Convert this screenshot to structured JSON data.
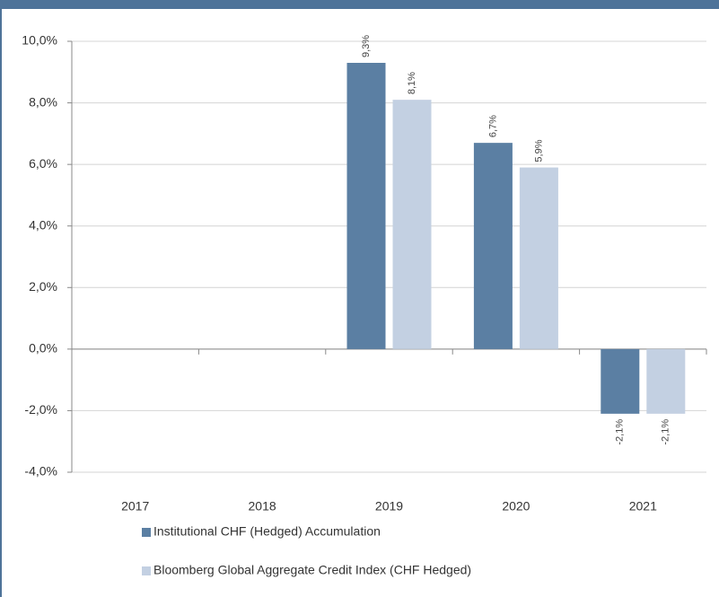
{
  "chart_data": {
    "type": "bar",
    "categories": [
      "2017",
      "2018",
      "2019",
      "2020",
      "2021"
    ],
    "series": [
      {
        "name": "Institutional CHF (Hedged) Accumulation",
        "color": "#5b7fa3",
        "values": [
          null,
          null,
          9.3,
          6.7,
          -2.1
        ],
        "value_labels": [
          null,
          null,
          "9,3%",
          "6,7%",
          "-2,1%"
        ]
      },
      {
        "name": "Bloomberg Global Aggregate Credit Index (CHF Hedged)",
        "color": "#c3d0e2",
        "values": [
          null,
          null,
          8.1,
          5.9,
          -2.1
        ],
        "value_labels": [
          null,
          null,
          "8,1%",
          "5,9%",
          "-2,1%"
        ]
      }
    ],
    "ylim": [
      -4,
      10
    ],
    "yticks": [
      {
        "value": -4,
        "label": "-4,0%"
      },
      {
        "value": -2,
        "label": "-2,0%"
      },
      {
        "value": 0,
        "label": "0,0%"
      },
      {
        "value": 2,
        "label": "2,0%"
      },
      {
        "value": 4,
        "label": "4,0%"
      },
      {
        "value": 6,
        "label": "6,0%"
      },
      {
        "value": 8,
        "label": "8,0%"
      },
      {
        "value": 10,
        "label": "10,0%"
      }
    ],
    "grid": true
  }
}
